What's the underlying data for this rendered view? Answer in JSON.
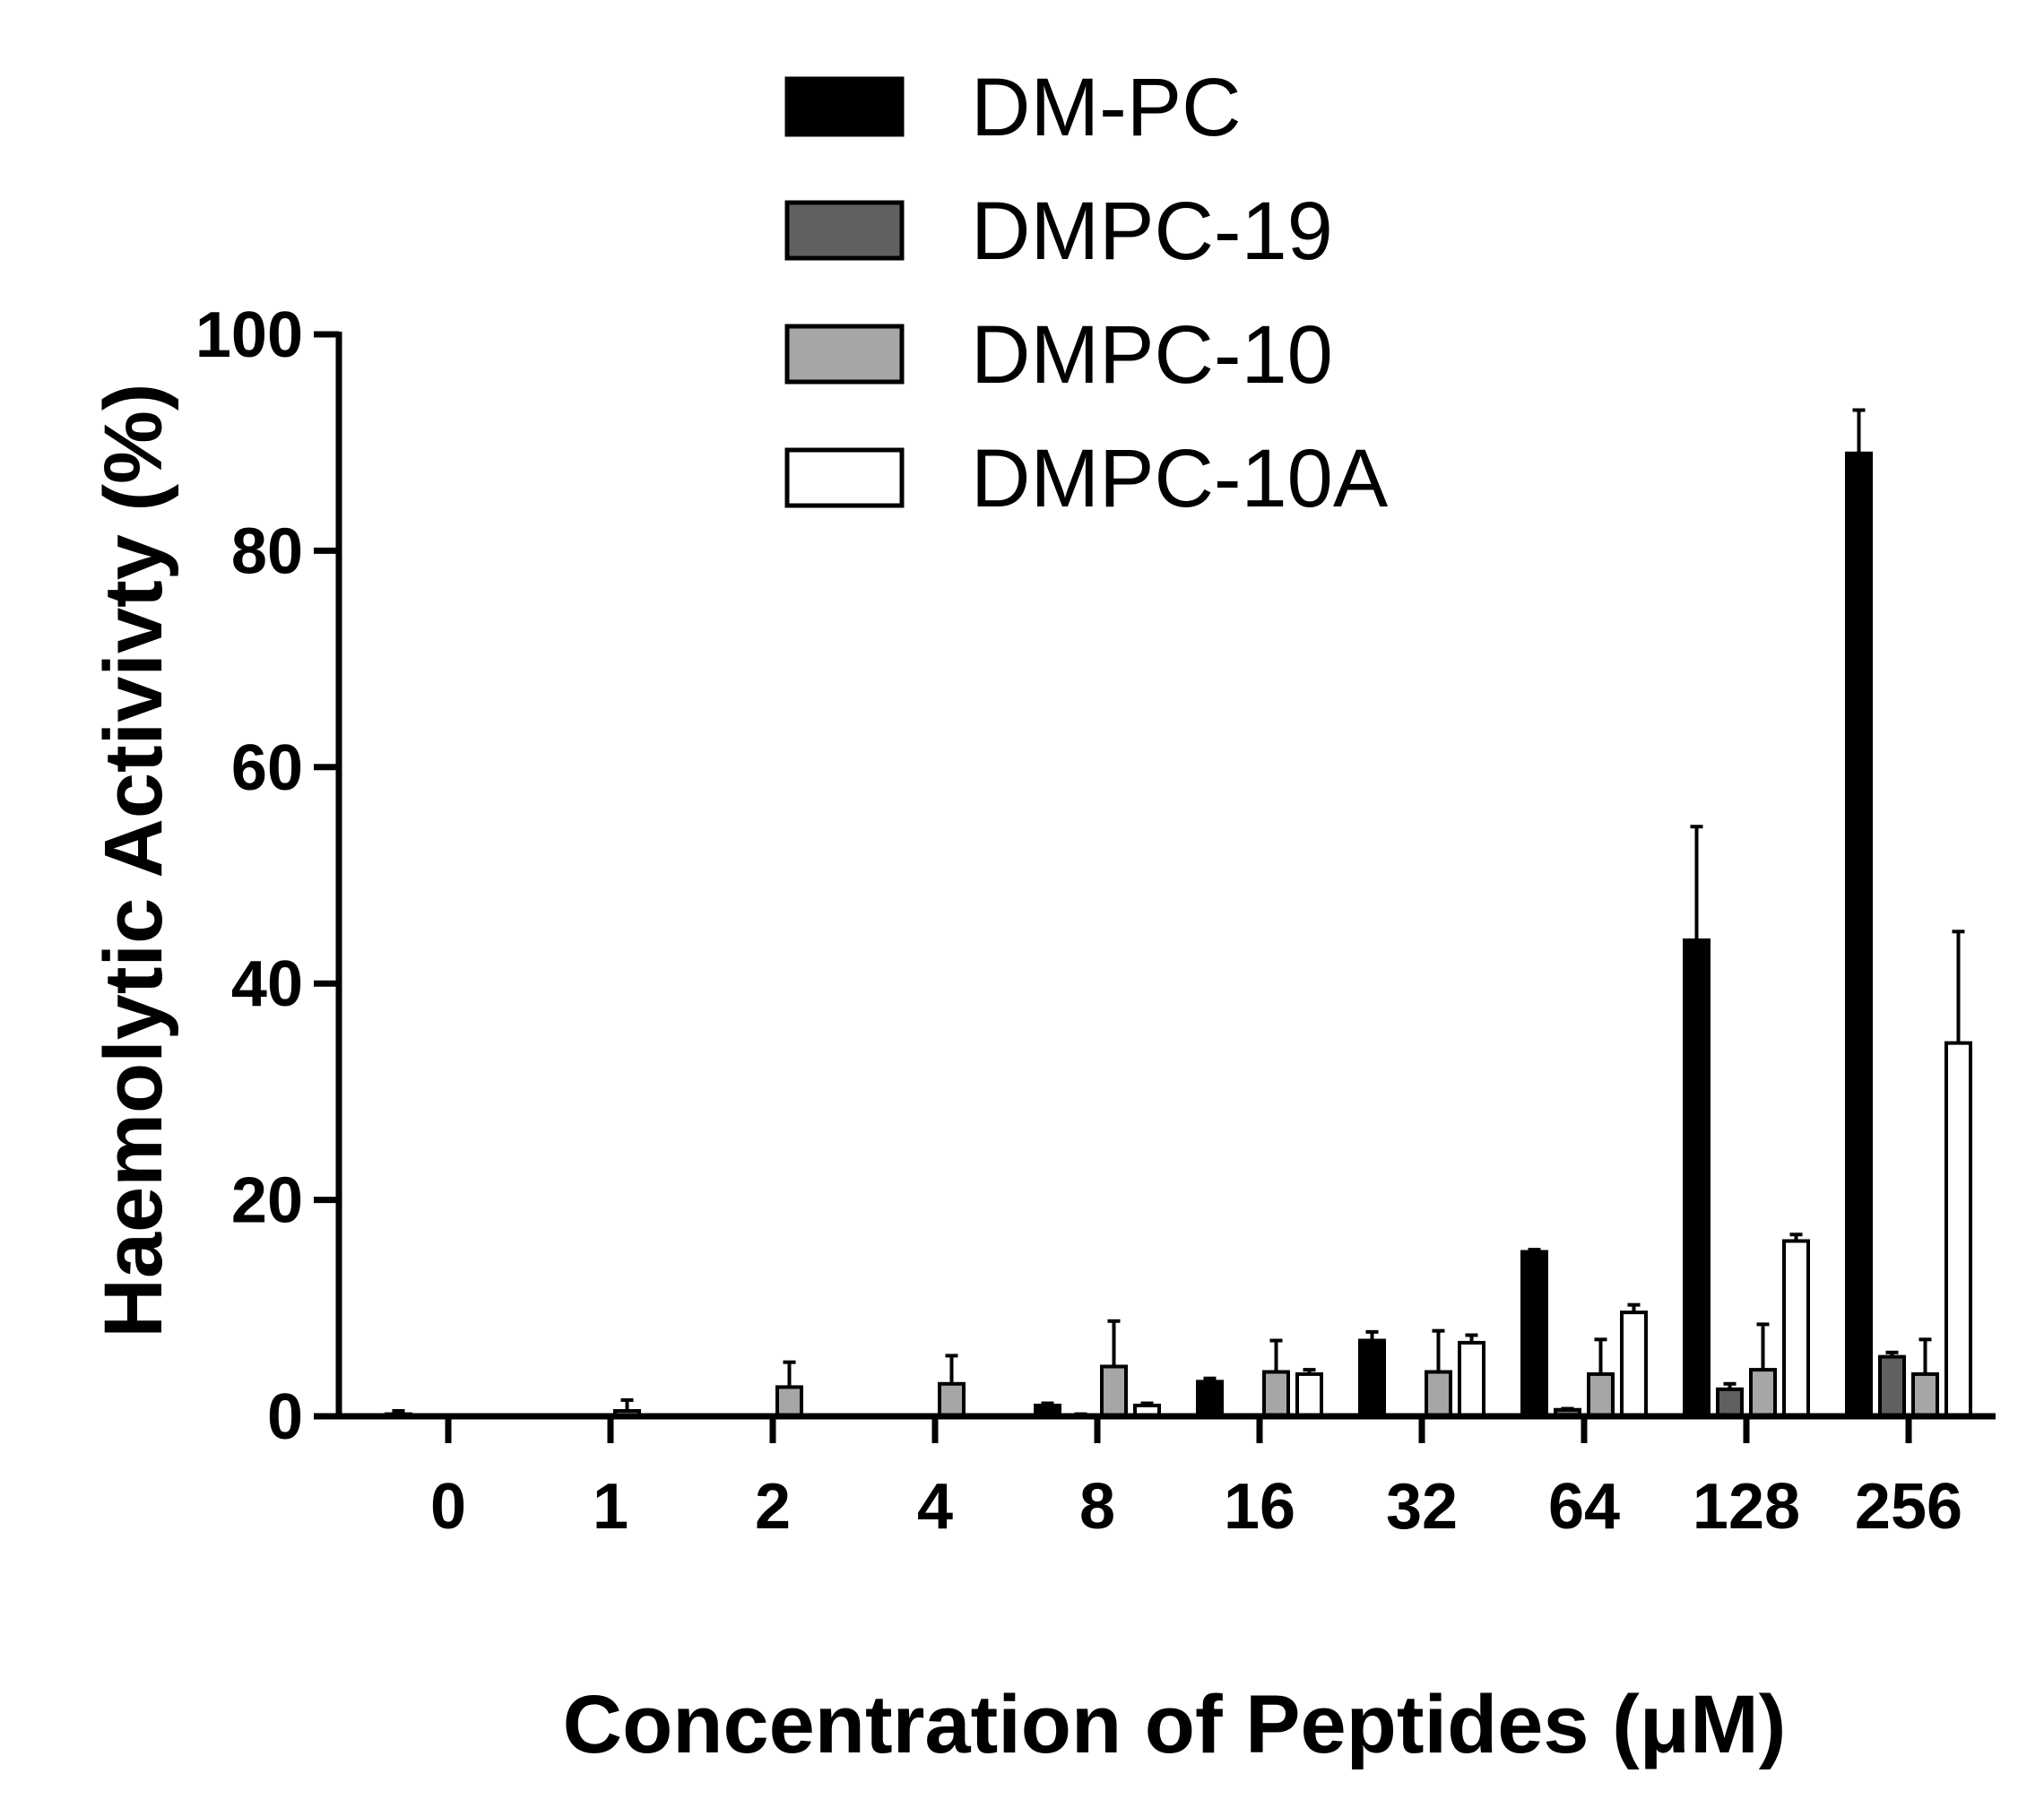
{
  "chart_data": {
    "type": "bar",
    "xlabel": "Concentration of Peptides (μM)",
    "ylabel": "Haemolytic Activivty (%)",
    "ylim": [
      0,
      100
    ],
    "yticks": [
      "0",
      "20",
      "40",
      "60",
      "80",
      "100"
    ],
    "categories": [
      "0",
      "1",
      "2",
      "4",
      "8",
      "16",
      "32",
      "64",
      "128",
      "256"
    ],
    "legend_position": "top",
    "error_bars": "upper",
    "series": [
      {
        "name": "DM-PC",
        "color": "#000000",
        "values": [
          0.2,
          0,
          0,
          0,
          1.0,
          3.2,
          7.0,
          15.2,
          44.0,
          89.0
        ],
        "errors": [
          0.3,
          0,
          0,
          0,
          0.2,
          0.3,
          0.8,
          0.2,
          10.5,
          4.0
        ]
      },
      {
        "name": "DMPC-19",
        "color": "#606060",
        "values": [
          0,
          0,
          0,
          0,
          0.1,
          0,
          0,
          0.6,
          2.5,
          5.5
        ],
        "errors": [
          0,
          0,
          0,
          0,
          0.1,
          0,
          0,
          0.1,
          0.5,
          0.4
        ]
      },
      {
        "name": "DMPC-10",
        "color": "#a6a6a6",
        "values": [
          0,
          0.5,
          2.7,
          3.0,
          4.6,
          4.1,
          4.1,
          3.9,
          4.3,
          3.9
        ],
        "errors": [
          0,
          1.0,
          2.3,
          2.6,
          4.2,
          2.9,
          3.8,
          3.2,
          4.2,
          3.2
        ]
      },
      {
        "name": "DMPC-10A",
        "color": "#ffffff",
        "values": [
          0,
          0,
          0,
          0,
          1.0,
          3.9,
          6.8,
          9.6,
          16.2,
          34.5
        ],
        "errors": [
          0,
          0,
          0,
          0,
          0.2,
          0.4,
          0.7,
          0.7,
          0.6,
          10.3
        ]
      }
    ]
  }
}
